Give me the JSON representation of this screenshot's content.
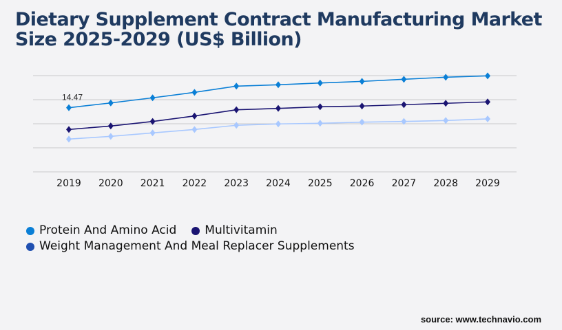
{
  "chart_data": {
    "type": "line",
    "title": "Dietary Supplement Contract Manufacturing Market Size 2025-2029 (US$ Billion)",
    "categories": [
      "2019",
      "2020",
      "2021",
      "2022",
      "2023",
      "2024",
      "2025",
      "2026",
      "2027",
      "2028",
      "2029"
    ],
    "ylim": [
      0,
      21.7
    ],
    "grid": true,
    "legend_placement": "bottom-left",
    "series": [
      {
        "name": "Protein And Amino Acid",
        "color": "#0a7fd6",
        "values": [
          14.47,
          15.54,
          16.7,
          17.93,
          19.33,
          19.64,
          20.04,
          20.4,
          20.87,
          21.34,
          21.65
        ]
      },
      {
        "name": "Multivitamin",
        "color": "#1a1472",
        "values": [
          9.56,
          10.34,
          11.37,
          12.6,
          14.0,
          14.31,
          14.68,
          14.84,
          15.15,
          15.46,
          15.77
        ]
      },
      {
        "name": "Weight Management And Meal Replacer Supplements",
        "color": "#a8c8ff",
        "legend_color": "#1f4fb0",
        "values": [
          7.39,
          8.01,
          8.79,
          9.56,
          10.5,
          10.81,
          10.96,
          11.21,
          11.37,
          11.58,
          11.94
        ]
      }
    ],
    "annotations": [
      {
        "series": 0,
        "category": "2019",
        "label": "14.47"
      }
    ]
  },
  "source": "source: www.technavio.com"
}
